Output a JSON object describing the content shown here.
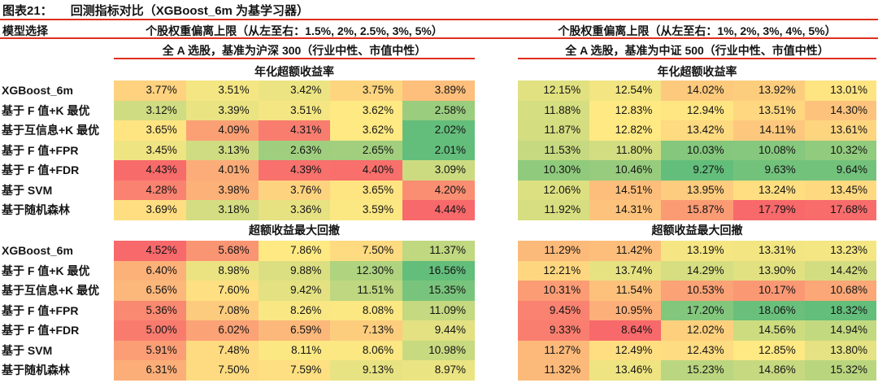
{
  "title": {
    "tag": "图表21：",
    "text": "回测指标对比（XGBoost_6m 为基学习器）"
  },
  "header": {
    "model_col": "模型选择"
  },
  "colors": {
    "rule_red": "#E0301E",
    "scale_green": "#63BE7B",
    "scale_yellow": "#FFE983",
    "scale_red": "#F8696B",
    "text": "#141414",
    "background": "#FFFFFF"
  },
  "chart_data": [
    {
      "type": "heatmap",
      "side": "left",
      "limits_header": "个股权重偏离上限（从左至右：1.5%, 2%, 2.5%, 3%, 5%）",
      "universe_header": "全 A 选股，基准为沪深 300（行业中性、市值中性）",
      "columns": [
        "1.5%",
        "2%",
        "2.5%",
        "3%",
        "5%"
      ],
      "unit": "%",
      "sections": [
        {
          "title": "年化超额收益率",
          "scale": {
            "min": "#63BE7B",
            "mid": "#FFE983",
            "max": "#F8696B"
          },
          "rows": [
            {
              "label": "XGBoost_6m",
              "values": [
                3.77,
                3.51,
                3.42,
                3.75,
                3.89
              ]
            },
            {
              "label": "基于 F 值+K 最优",
              "values": [
                3.12,
                3.39,
                3.51,
                3.62,
                2.58
              ]
            },
            {
              "label": "基于互信息+K 最优",
              "values": [
                3.65,
                4.09,
                4.31,
                3.62,
                2.02
              ]
            },
            {
              "label": "基于 F 值+FPR",
              "values": [
                3.45,
                3.13,
                2.63,
                2.65,
                2.01
              ]
            },
            {
              "label": "基于 F 值+FDR",
              "values": [
                4.43,
                4.01,
                4.39,
                4.4,
                3.09
              ]
            },
            {
              "label": "基于 SVM",
              "values": [
                4.28,
                3.98,
                3.76,
                3.65,
                4.2
              ]
            },
            {
              "label": "基于随机森林",
              "values": [
                3.69,
                3.18,
                3.36,
                3.59,
                4.44
              ]
            }
          ]
        },
        {
          "title": "超额收益最大回撤",
          "scale": {
            "min": "#F8696B",
            "mid": "#FFE983",
            "max": "#63BE7B"
          },
          "rows": [
            {
              "label": "XGBoost_6m",
              "values": [
                4.52,
                5.68,
                7.86,
                7.5,
                11.37
              ]
            },
            {
              "label": "基于 F 值+K 最优",
              "values": [
                6.4,
                8.98,
                9.88,
                12.3,
                16.56
              ]
            },
            {
              "label": "基于互信息+K 最优",
              "values": [
                6.56,
                7.6,
                9.42,
                11.51,
                15.35
              ]
            },
            {
              "label": "基于 F 值+FPR",
              "values": [
                5.36,
                7.08,
                8.26,
                8.08,
                11.09
              ]
            },
            {
              "label": "基于 F 值+FDR",
              "values": [
                5.0,
                6.02,
                6.59,
                7.13,
                9.44
              ]
            },
            {
              "label": "基于 SVM",
              "values": [
                5.91,
                7.48,
                8.11,
                8.06,
                10.98
              ]
            },
            {
              "label": "基于随机森林",
              "values": [
                6.31,
                7.5,
                7.59,
                9.13,
                8.97
              ]
            }
          ]
        }
      ]
    },
    {
      "type": "heatmap",
      "side": "right",
      "limits_header": "个股权重偏离上限（从左至右：1%, 2%, 3%, 4%, 5%）",
      "universe_header": "全 A 选股，基准为中证 500（行业中性、市值中性）",
      "columns": [
        "1%",
        "2%",
        "3%",
        "4%",
        "5%"
      ],
      "unit": "%",
      "sections": [
        {
          "title": "年化超额收益率",
          "scale": {
            "min": "#63BE7B",
            "mid": "#FFE983",
            "max": "#F8696B"
          },
          "rows": [
            {
              "label": "XGBoost_6m",
              "values": [
                12.15,
                12.54,
                14.02,
                13.92,
                13.01
              ]
            },
            {
              "label": "基于 F 值+K 最优",
              "values": [
                11.88,
                12.83,
                12.94,
                13.51,
                14.3
              ]
            },
            {
              "label": "基于互信息+K 最优",
              "values": [
                11.87,
                12.82,
                13.42,
                14.11,
                13.61
              ]
            },
            {
              "label": "基于 F 值+FPR",
              "values": [
                11.53,
                11.8,
                10.03,
                10.08,
                10.32
              ]
            },
            {
              "label": "基于 F 值+FDR",
              "values": [
                10.3,
                10.46,
                9.27,
                9.63,
                9.64
              ]
            },
            {
              "label": "基于 SVM",
              "values": [
                12.06,
                14.51,
                13.95,
                13.24,
                13.45
              ]
            },
            {
              "label": "基于随机森林",
              "values": [
                11.92,
                14.31,
                15.87,
                17.79,
                17.68
              ]
            }
          ]
        },
        {
          "title": "超额收益最大回撤",
          "scale": {
            "min": "#F8696B",
            "mid": "#FFE983",
            "max": "#63BE7B"
          },
          "rows": [
            {
              "label": "XGBoost_6m",
              "values": [
                11.29,
                11.42,
                13.19,
                13.31,
                13.23
              ]
            },
            {
              "label": "基于 F 值+K 最优",
              "values": [
                12.21,
                13.74,
                14.29,
                13.9,
                14.42
              ]
            },
            {
              "label": "基于互信息+K 最优",
              "values": [
                10.31,
                11.54,
                10.53,
                10.17,
                10.68
              ]
            },
            {
              "label": "基于 F 值+FPR",
              "values": [
                9.45,
                10.95,
                17.2,
                18.06,
                18.32
              ]
            },
            {
              "label": "基于 F 值+FDR",
              "values": [
                9.33,
                8.64,
                12.02,
                14.56,
                14.94
              ]
            },
            {
              "label": "基于 SVM",
              "values": [
                11.27,
                12.49,
                12.43,
                12.85,
                13.8
              ]
            },
            {
              "label": "基于随机森林",
              "values": [
                11.32,
                13.46,
                15.23,
                14.86,
                15.32
              ]
            }
          ]
        }
      ]
    }
  ]
}
